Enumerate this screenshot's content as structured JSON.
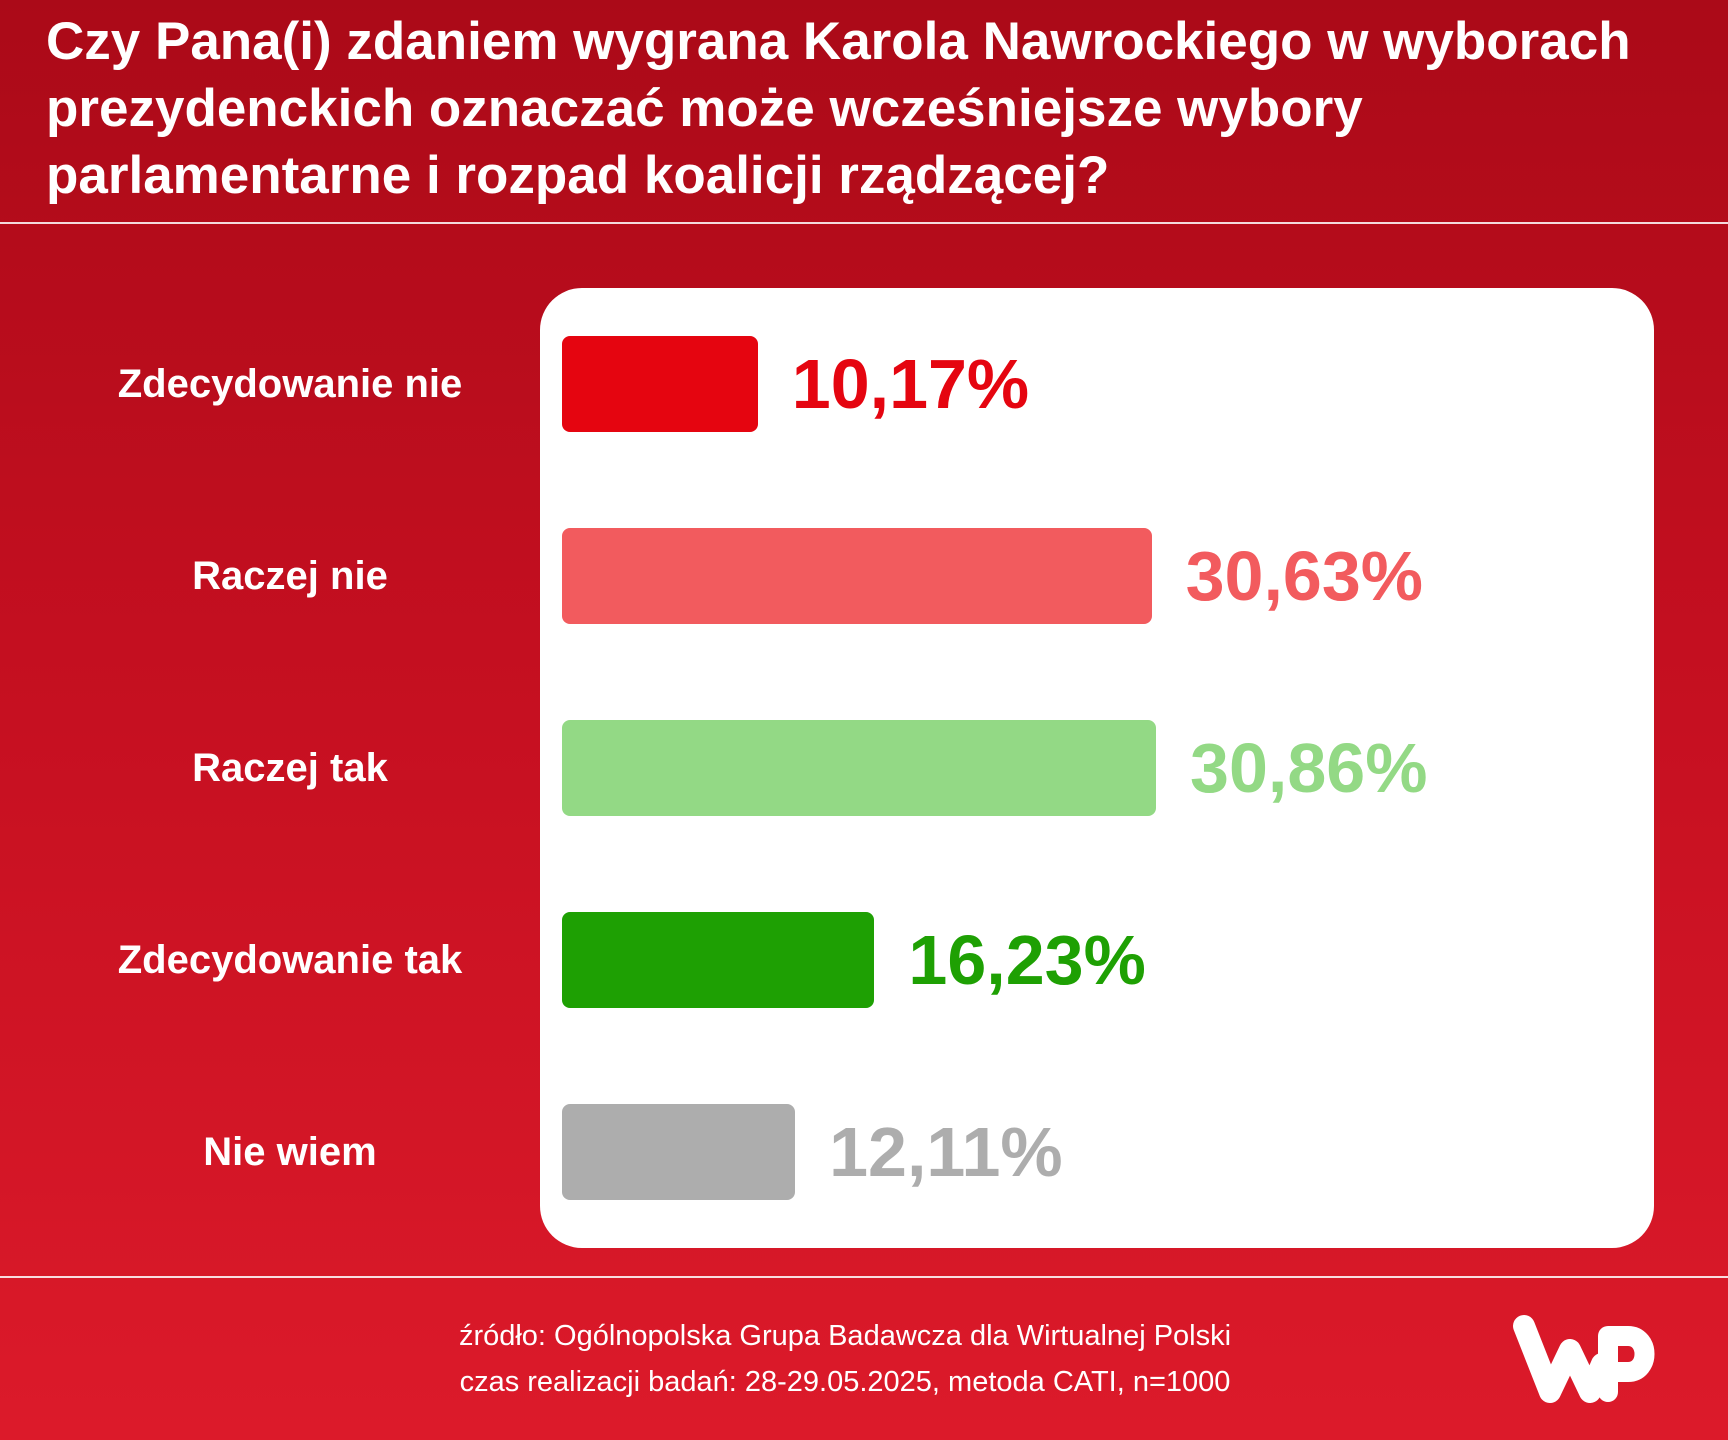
{
  "title": "Czy Pana(i) zdaniem wygrana Karola Nawrockiego w wyborach prezydenckich oznaczać może wcześniejsze wybory parlamentarne i rozpad koalicji rządzącej?",
  "chart_data": {
    "type": "bar",
    "orientation": "horizontal",
    "title": "Czy Pana(i) zdaniem wygrana Karola Nawrockiego w wyborach prezydenckich oznaczać może wcześniejsze wybory parlamentarne i rozpad koalicji rządzącej?",
    "categories": [
      "Zdecydowanie nie",
      "Raczej nie",
      "Raczej tak",
      "Zdecydowanie tak",
      "Nie wiem"
    ],
    "values": [
      10.17,
      30.63,
      30.86,
      16.23,
      12.11
    ],
    "value_labels": [
      "10,17%",
      "30,63%",
      "30,86%",
      "16,23%",
      "12,11%"
    ],
    "colors": [
      "#e50510",
      "#f25b5e",
      "#93d985",
      "#1ea003",
      "#adadad"
    ],
    "unit": "%",
    "xlim": [
      0,
      50
    ],
    "grid": false,
    "legend": "none"
  },
  "footer": {
    "source": "źródło: Ogólnopolska Grupa Badawcza dla Wirtualnej Polski",
    "method": "czas realizacji badań: 28-29.05.2025, metoda CATI, n=1000"
  },
  "logo": {
    "name": "wp-logo-icon",
    "text": "WP"
  },
  "colors": {
    "background_top": "#ab0a18",
    "background_bottom": "#dc1a2a",
    "panel": "#ffffff"
  }
}
